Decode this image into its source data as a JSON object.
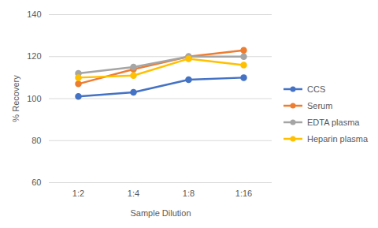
{
  "chart_data": {
    "type": "line",
    "x_label": "Sample Dilution",
    "y_label": "% Recovery",
    "categories": [
      "1:2",
      "1:4",
      "1:8",
      "1:16"
    ],
    "series": [
      {
        "name": "CCS",
        "color": "#4472c4",
        "values": [
          101,
          103,
          109,
          110
        ]
      },
      {
        "name": "Serum",
        "color": "#ed7d31",
        "values": [
          107,
          114,
          120,
          123
        ]
      },
      {
        "name": "EDTA plasma",
        "color": "#a5a5a5",
        "values": [
          112,
          115,
          120,
          120
        ]
      },
      {
        "name": "Heparin plasma",
        "color": "#ffc000",
        "values": [
          110,
          111,
          119,
          116
        ]
      }
    ],
    "ylim": [
      60,
      140
    ],
    "yticks": [
      60,
      80,
      100,
      120,
      140
    ],
    "grid": true,
    "legend": "right",
    "marker": "circle"
  }
}
